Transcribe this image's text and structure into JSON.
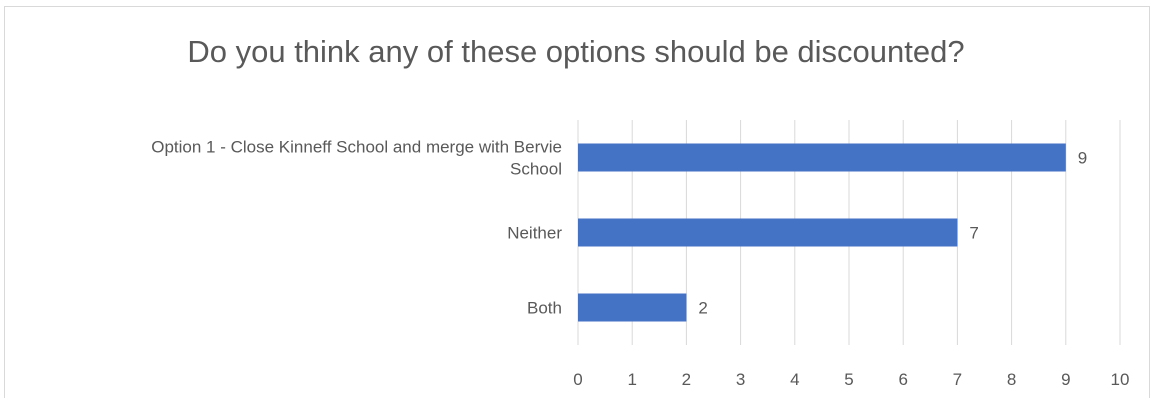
{
  "chart_data": {
    "type": "bar",
    "orientation": "horizontal",
    "title": "Do you think any of these options should be discounted?",
    "categories": [
      "Option 1 - Close Kinneff School and merge with Bervie School",
      "Neither",
      "Both"
    ],
    "category_label_lines": [
      [
        "Option 1 - Close Kinneff School and merge with Bervie",
        "School"
      ],
      [
        "Neither"
      ],
      [
        "Both"
      ]
    ],
    "values": [
      9,
      7,
      2
    ],
    "xlim": [
      0,
      10
    ],
    "xticks": [
      0,
      1,
      2,
      3,
      4,
      5,
      6,
      7,
      8,
      9,
      10
    ],
    "grid": true,
    "data_labels": true,
    "colors": {
      "bar": "#4472c4",
      "grid": "#d9d9d9",
      "text": "#595959"
    }
  }
}
